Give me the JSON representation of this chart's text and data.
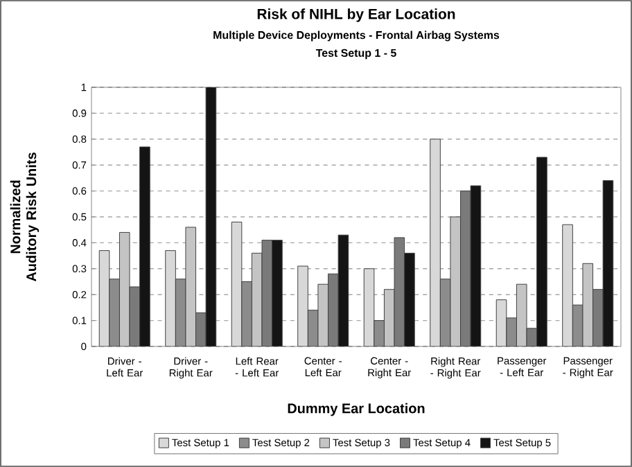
{
  "chart_data": {
    "type": "bar",
    "title": "Risk of NIHL by Ear Location",
    "subtitle": "Multiple Device Deployments - Frontal Airbag Systems",
    "annotations": [
      "Test Setup 1 - 5"
    ],
    "xlabel": "Dummy Ear Location",
    "ylabel": "Normalized Auditory Risk Units",
    "categories": [
      "Driver - Left Ear",
      "Driver - Right Ear",
      "Left Rear - Left Ear",
      "Center - Left Ear",
      "Center - Right Ear",
      "Right Rear - Right Ear",
      "Passenger - Left Ear",
      "Passenger - Right Ear"
    ],
    "series": [
      {
        "name": "Test Setup 1",
        "color": "#d8d8d8",
        "values": [
          0.37,
          0.37,
          0.48,
          0.31,
          0.3,
          0.8,
          0.18,
          0.47
        ]
      },
      {
        "name": "Test Setup 2",
        "color": "#8c8c8c",
        "values": [
          0.26,
          0.26,
          0.25,
          0.14,
          0.1,
          0.26,
          0.11,
          0.16
        ]
      },
      {
        "name": "Test Setup 3",
        "color": "#c4c4c4",
        "values": [
          0.44,
          0.46,
          0.36,
          0.24,
          0.22,
          0.5,
          0.24,
          0.32
        ]
      },
      {
        "name": "Test Setup 4",
        "color": "#7a7a7a",
        "values": [
          0.23,
          0.13,
          0.41,
          0.28,
          0.42,
          0.6,
          0.07,
          0.22
        ]
      },
      {
        "name": "Test Setup 5",
        "color": "#141414",
        "values": [
          0.77,
          1.0,
          0.41,
          0.43,
          0.36,
          0.62,
          0.73,
          0.64
        ]
      }
    ],
    "ylim": [
      0,
      1
    ],
    "yticks": [
      0,
      0.1,
      0.2,
      0.3,
      0.4,
      0.5,
      0.6,
      0.7,
      0.8,
      0.9,
      1
    ],
    "grid": "y",
    "legend": "bottom"
  }
}
